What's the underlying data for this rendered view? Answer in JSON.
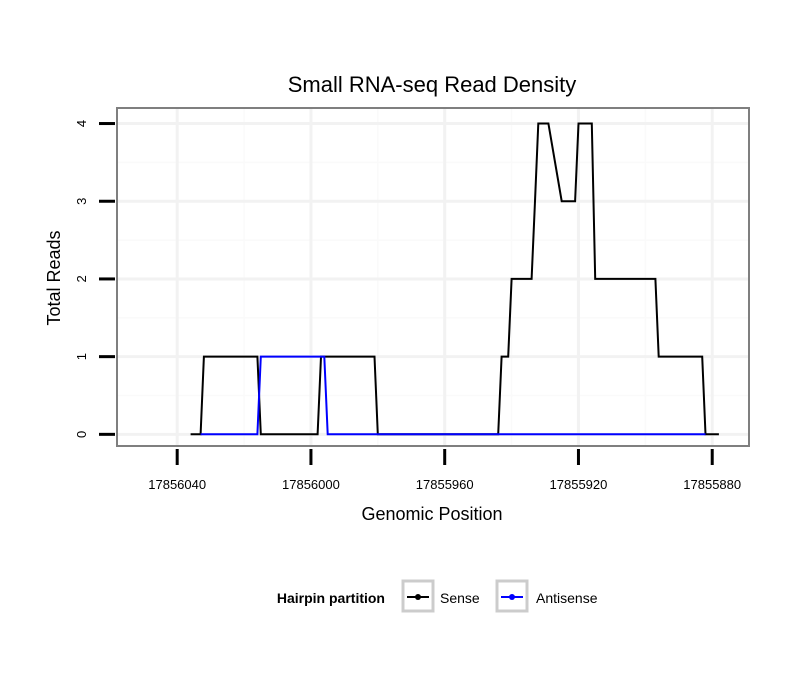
{
  "chart_data": {
    "type": "line",
    "title": "Small RNA-seq Read Density",
    "xlabel": "Genomic Position",
    "ylabel": "Total Reads",
    "x_reversed": true,
    "xlim": [
      17856058,
      17855869
    ],
    "ylim": [
      -0.15,
      4.2
    ],
    "xticks": [
      17856040,
      17856000,
      17855960,
      17855920,
      17855880
    ],
    "xtick_labels": [
      "17856040",
      "17856000",
      "17855960",
      "17855920",
      "17855880"
    ],
    "yticks": [
      0,
      1,
      2,
      3,
      4
    ],
    "ytick_labels": [
      "0",
      "1",
      "2",
      "3",
      "4"
    ],
    "grid": true,
    "legend": {
      "title": "Hairpin partition",
      "position": "bottom",
      "entries": [
        "Sense",
        "Antisense"
      ]
    },
    "series": [
      {
        "name": "Sense",
        "color": "#000000",
        "x": [
          17856036,
          17856033,
          17856032,
          17856016,
          17856015,
          17856008,
          17855998,
          17855997,
          17855981,
          17855980,
          17855944,
          17855943,
          17855941,
          17855940,
          17855934,
          17855933,
          17855932,
          17855929,
          17855925,
          17855924,
          17855921,
          17855920,
          17855916,
          17855915,
          17855906,
          17855905,
          17855897,
          17855896,
          17855891,
          17855890,
          17855883,
          17855882,
          17855878
        ],
        "y": [
          0,
          0,
          1,
          1,
          0,
          0,
          0,
          1,
          1,
          0,
          0,
          1,
          1,
          2,
          2,
          3,
          4,
          4,
          3,
          3,
          3,
          4,
          4,
          2,
          2,
          2,
          2,
          1,
          1,
          1,
          1,
          0,
          0
        ]
      },
      {
        "name": "Antisense",
        "color": "#0000ff",
        "x": [
          17856033,
          17856016,
          17856015,
          17855996,
          17855995,
          17855882
        ],
        "y": [
          0,
          0,
          1,
          1,
          0,
          0
        ]
      }
    ]
  }
}
